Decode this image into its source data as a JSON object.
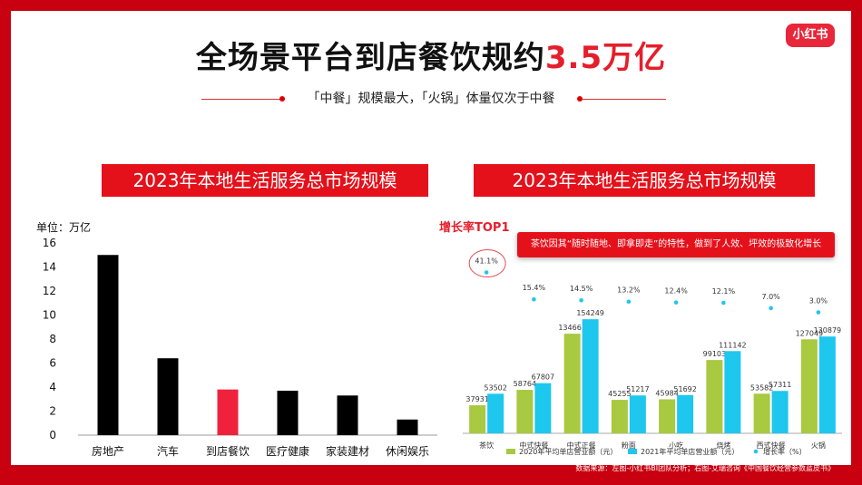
{
  "brand": {
    "logo_text": "小红书"
  },
  "title": {
    "main": "全场景平台到店餐饮规约",
    "highlight": "3.5万亿"
  },
  "subtitle": "「中餐」规模最大，「火锅」体量仅次于中餐",
  "left_panel": {
    "banner": "2023年本地生活服务总市场规模",
    "unit": "单位：万亿"
  },
  "right_panel": {
    "banner": "2023年本地生活服务总市场规模",
    "tag": "增长率TOP1",
    "callout": "茶饮因其“随时随地、即拿即走”的特性，做到了人效、坪效的极致化增长"
  },
  "source": "数据来源：左图-小红书BI团队分析；右图-艾瑞咨询《中国餐饮经营参数蓝皮书》",
  "colors": {
    "accent": "#e4111b",
    "black_bar": "#000000",
    "highlight_bar": "#f0213d",
    "green": "#a8c940",
    "cyan": "#1ec7ee"
  },
  "chart_data": [
    {
      "type": "bar",
      "categories": [
        "房地产",
        "汽车",
        "到店餐饮",
        "医疗健康",
        "家装建材",
        "休闲娱乐"
      ],
      "values": [
        15.0,
        6.4,
        3.8,
        3.7,
        3.3,
        1.3
      ],
      "highlight_index": 2,
      "ylabel": "单位：万亿",
      "ylim": [
        0,
        16
      ],
      "yticks": [
        0,
        2,
        4,
        6,
        8,
        10,
        12,
        14,
        16
      ],
      "grid": false
    },
    {
      "type": "bar",
      "categories": [
        "茶饮",
        "中式快餐",
        "中式正餐",
        "粉面",
        "小吃",
        "烧烤",
        "西式快餐",
        "火锅"
      ],
      "series": [
        {
          "name": "2020年平均单店营业额（元）",
          "values": [
            37931,
            58764,
            134667,
            45255,
            45984,
            99103,
            53582,
            127049
          ]
        },
        {
          "name": "2021年平均单店营业额（元）",
          "values": [
            53502,
            67807,
            154249,
            51217,
            51692,
            111142,
            57311,
            130879
          ]
        }
      ],
      "growth": {
        "name": "增长率（%）",
        "labels": [
          "41.1%",
          "15.4%",
          "14.5%",
          "13.2%",
          "12.4%",
          "12.1%",
          "7.0%",
          "3.0%"
        ],
        "values": [
          41.1,
          15.4,
          14.5,
          13.2,
          12.4,
          12.1,
          7.0,
          3.0
        ]
      },
      "ylim": [
        0,
        180000
      ],
      "legend": "bottom",
      "grid": false
    }
  ]
}
